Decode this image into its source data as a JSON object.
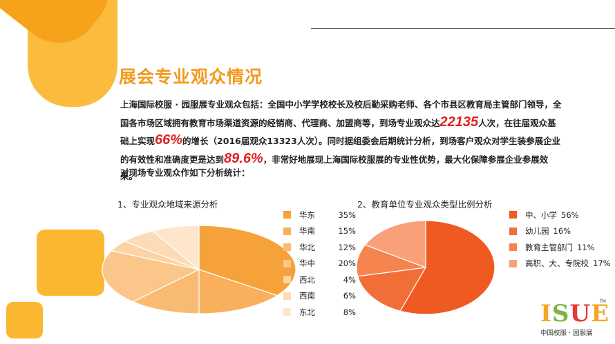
{
  "title": "展会专业观众情况",
  "paragraph": {
    "p1": "上海国际校服 · 园服展专业观众包括：全国中小学学校校长及校后勤采购老师、各个市县区教育局主管部门领导，全国各市场区域拥有教育市场渠道资源的经销商、代理商、加盟商等，到场专业观众达",
    "num1": "22135",
    "p2": "人次，在往届观众基础上实现",
    "num2": "66%",
    "p3": "的增长（2016届观众13323人次）。同时据组委会后期统计分析，到场客户观众对学生装参展企业的有效性和准确度更是达到",
    "num3": "89.6%",
    "p4": "，非常好地展现上海国际校服展的专业性优势，最大化保障参展企业参展效果。"
  },
  "intro": "对现场专业观众作如下分析统计：",
  "colors": {
    "accent": "#f39a1e",
    "highlight": "#e02020",
    "deco_yellow": "#fbb731",
    "deco_orange": "#f7a21b"
  },
  "chart_data": [
    {
      "type": "pie",
      "title": "1、专业观众地域来源分析",
      "legend_position": "right",
      "categories": [
        "华东",
        "华南",
        "华北",
        "华中",
        "西北",
        "西南",
        "东北"
      ],
      "values": [
        35,
        15,
        12,
        20,
        4,
        6,
        8
      ],
      "value_labels": [
        "35%",
        "15%",
        "12%",
        "20%",
        "4%",
        "6%",
        "8%"
      ],
      "colors": [
        "#f6a23a",
        "#f8b05c",
        "#f9bb72",
        "#fac689",
        "#fbd3a4",
        "#fcdcb6",
        "#fde6cc"
      ]
    },
    {
      "type": "pie",
      "title": "2、教育单位专业观众类型比例分析",
      "legend_position": "right",
      "categories": [
        "中、小学",
        "幼儿园",
        "教育主管部门",
        "高职、大、专院校"
      ],
      "values": [
        56,
        16,
        11,
        17
      ],
      "value_labels": [
        "56%",
        "16%",
        "11%",
        "17%"
      ],
      "colors": [
        "#ef5a22",
        "#f26e38",
        "#f5844f",
        "#f8a079"
      ]
    }
  ],
  "logo": {
    "letters": [
      "I",
      "S",
      "U",
      "E"
    ],
    "letter_colors": [
      "#f5a623",
      "#7cb342",
      "#e53935",
      "#f5a623"
    ],
    "trademark": "TM",
    "caption": "中国校服 · 园服展"
  }
}
